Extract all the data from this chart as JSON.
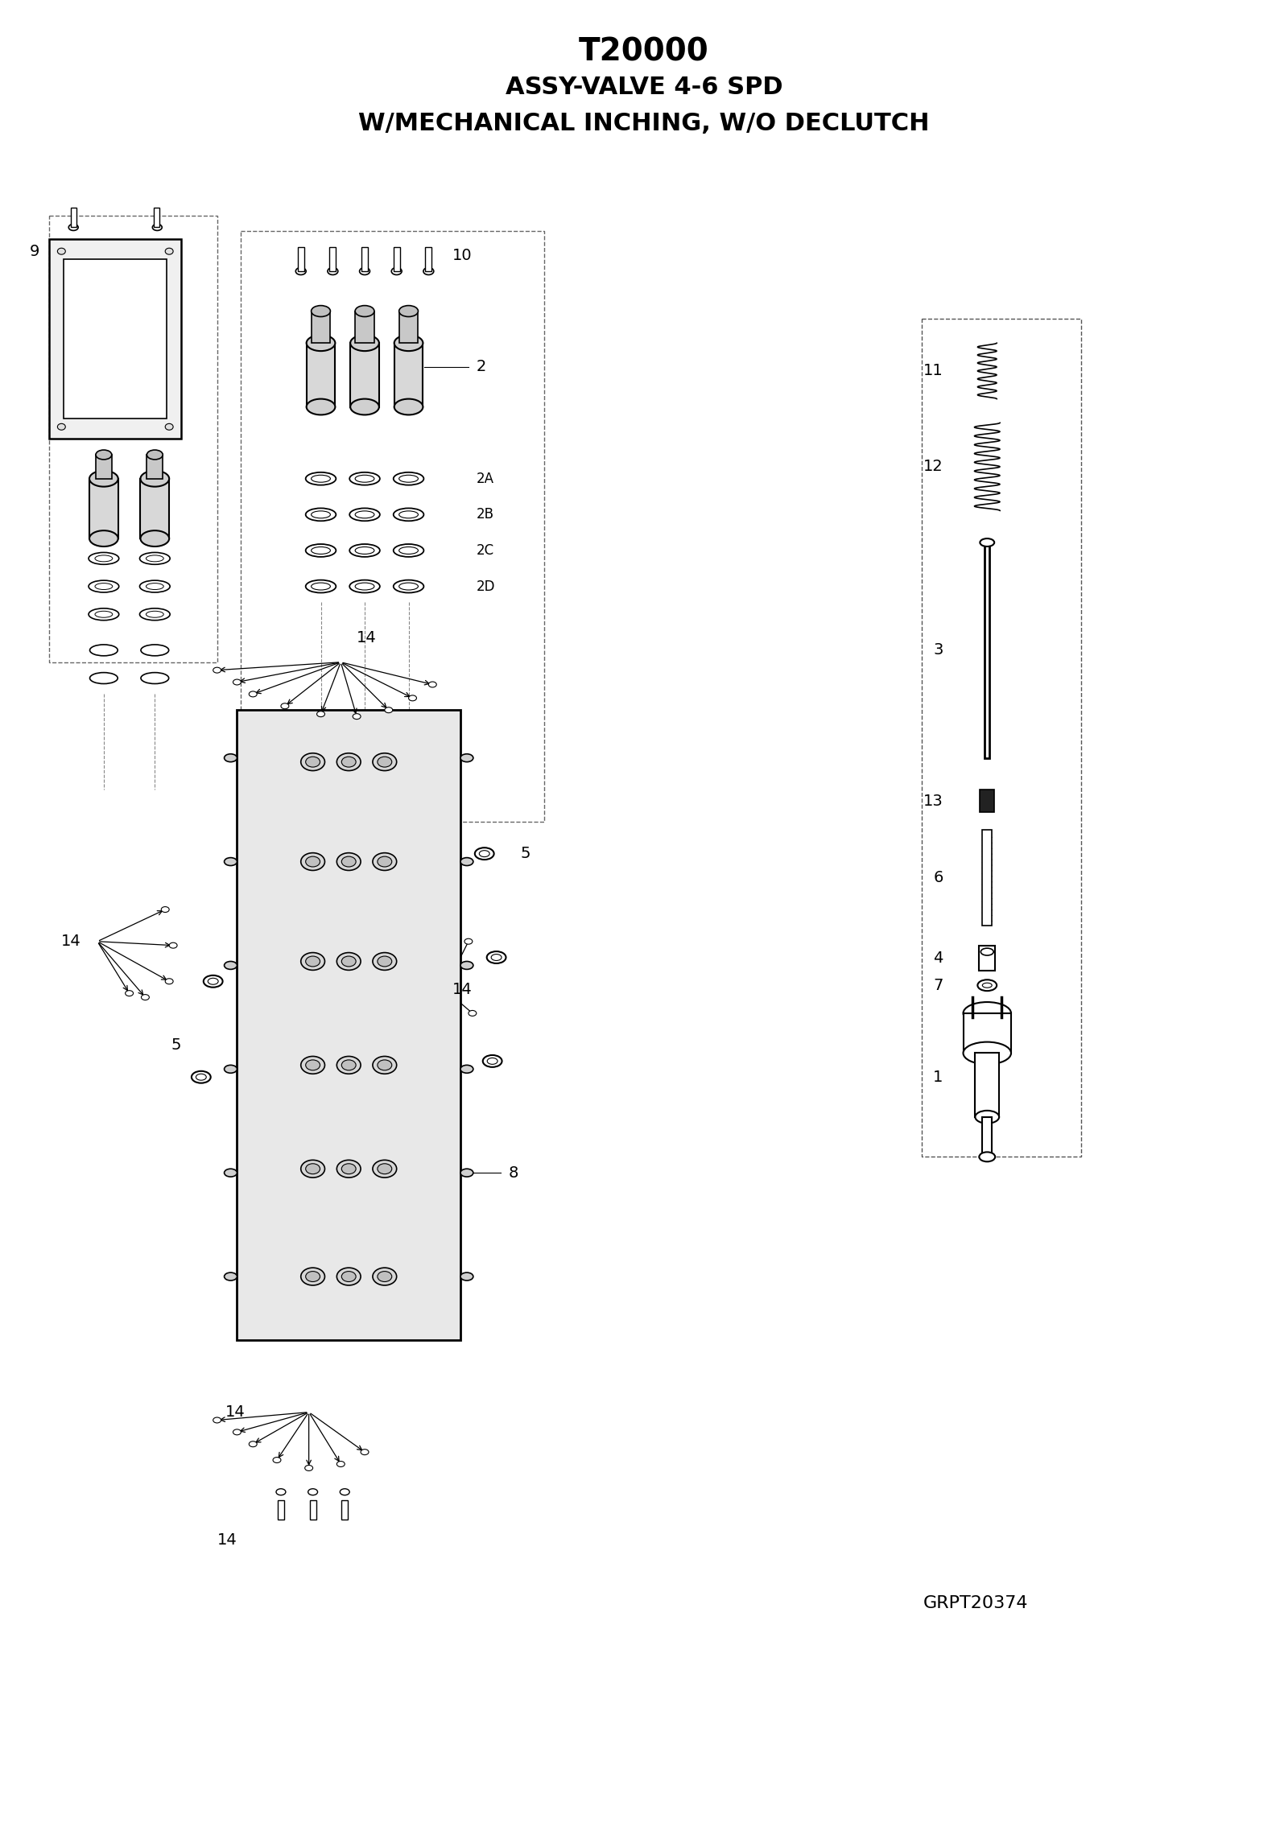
{
  "title_line1": "T20000",
  "title_line2": "ASSY-VALVE 4-6 SPD",
  "title_line3": "W/MECHANICAL INCHING, W/O DECLUTCH",
  "part_number": "GRPT20374",
  "bg_color": "#ffffff",
  "line_color": "#000000",
  "title_fontsize": 28,
  "subtitle_fontsize": 22,
  "label_fontsize": 14,
  "part_num_fontsize": 16
}
